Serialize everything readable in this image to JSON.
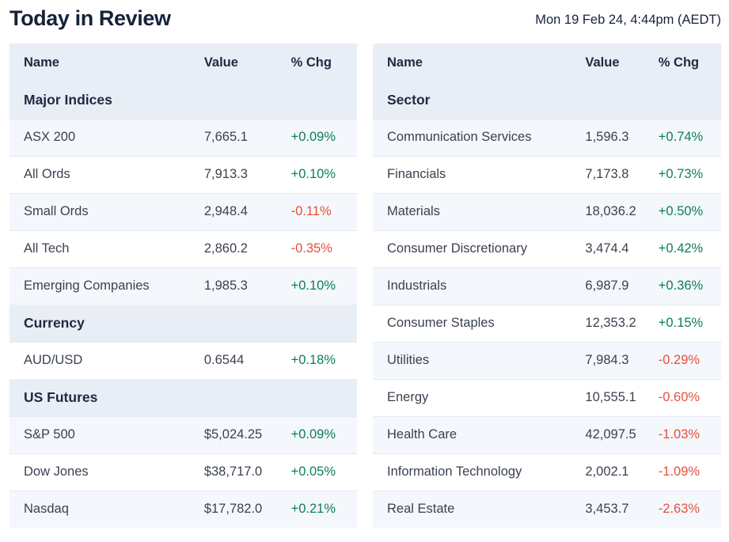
{
  "page": {
    "title": "Today in Review",
    "timestamp": "Mon 19 Feb 24, 4:44pm (AEDT)"
  },
  "columns": {
    "name": "Name",
    "value": "Value",
    "chg": "% Chg"
  },
  "colors": {
    "positive": "#0d7e58",
    "negative": "#e84f3b",
    "header_bg": "#e9eef6",
    "stripe_bg": "#f4f7fb",
    "title_text": "#16213a",
    "heading_text": "#1f2940",
    "body_text": "#3a4250"
  },
  "left_table": {
    "sections": [
      {
        "label": "Major Indices",
        "rows": [
          {
            "name": "ASX 200",
            "value": "7,665.1",
            "chg": "+0.09%",
            "direction": "up"
          },
          {
            "name": "All Ords",
            "value": "7,913.3",
            "chg": "+0.10%",
            "direction": "up"
          },
          {
            "name": "Small Ords",
            "value": "2,948.4",
            "chg": "-0.11%",
            "direction": "down"
          },
          {
            "name": "All Tech",
            "value": "2,860.2",
            "chg": "-0.35%",
            "direction": "down"
          },
          {
            "name": "Emerging Companies",
            "value": "1,985.3",
            "chg": "+0.10%",
            "direction": "up"
          }
        ]
      },
      {
        "label": "Currency",
        "rows": [
          {
            "name": "AUD/USD",
            "value": "0.6544",
            "chg": "+0.18%",
            "direction": "up"
          }
        ]
      },
      {
        "label": "US Futures",
        "rows": [
          {
            "name": "S&P 500",
            "value": "$5,024.25",
            "chg": "+0.09%",
            "direction": "up"
          },
          {
            "name": "Dow Jones",
            "value": "$38,717.0",
            "chg": "+0.05%",
            "direction": "up"
          },
          {
            "name": "Nasdaq",
            "value": "$17,782.0",
            "chg": "+0.21%",
            "direction": "up"
          }
        ]
      }
    ]
  },
  "right_table": {
    "sections": [
      {
        "label": "Sector",
        "rows": [
          {
            "name": "Communication Services",
            "value": "1,596.3",
            "chg": "+0.74%",
            "direction": "up"
          },
          {
            "name": "Financials",
            "value": "7,173.8",
            "chg": "+0.73%",
            "direction": "up"
          },
          {
            "name": "Materials",
            "value": "18,036.2",
            "chg": "+0.50%",
            "direction": "up"
          },
          {
            "name": "Consumer Discretionary",
            "value": "3,474.4",
            "chg": "+0.42%",
            "direction": "up"
          },
          {
            "name": "Industrials",
            "value": "6,987.9",
            "chg": "+0.36%",
            "direction": "up"
          },
          {
            "name": "Consumer Staples",
            "value": "12,353.2",
            "chg": "+0.15%",
            "direction": "up"
          },
          {
            "name": "Utilities",
            "value": "7,984.3",
            "chg": "-0.29%",
            "direction": "down"
          },
          {
            "name": "Energy",
            "value": "10,555.1",
            "chg": "-0.60%",
            "direction": "down"
          },
          {
            "name": "Health Care",
            "value": "42,097.5",
            "chg": "-1.03%",
            "direction": "down"
          },
          {
            "name": "Information Technology",
            "value": "2,002.1",
            "chg": "-1.09%",
            "direction": "down"
          },
          {
            "name": "Real Estate",
            "value": "3,453.7",
            "chg": "-2.63%",
            "direction": "down"
          }
        ]
      }
    ]
  }
}
